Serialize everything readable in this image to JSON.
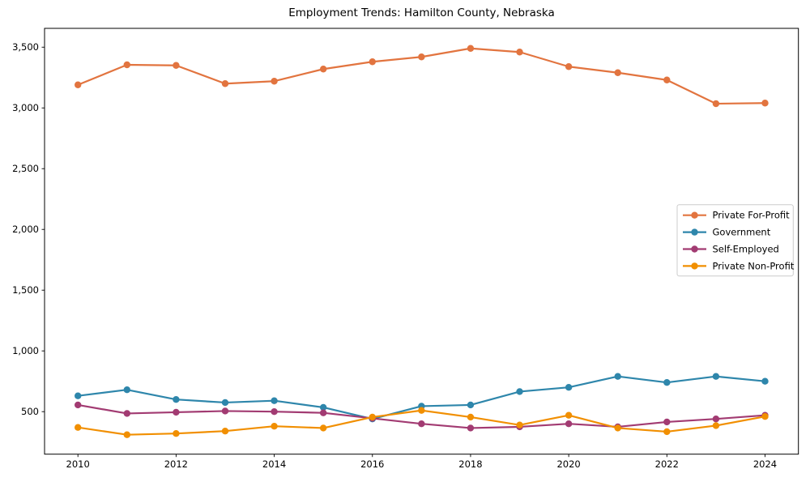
{
  "chart_data": {
    "type": "line",
    "title": "Employment Trends: Hamilton County, Nebraska",
    "xlabel": "",
    "ylabel": "",
    "x": [
      2010,
      2011,
      2012,
      2013,
      2014,
      2015,
      2016,
      2017,
      2018,
      2019,
      2020,
      2021,
      2022,
      2023,
      2024
    ],
    "series": [
      {
        "name": "Private For-Profit",
        "color": "#E2743F",
        "values": [
          3190,
          3355,
          3350,
          3200,
          3220,
          3320,
          3380,
          3420,
          3490,
          3460,
          3340,
          3290,
          3230,
          3035,
          3040
        ]
      },
      {
        "name": "Government",
        "color": "#2E86AB",
        "values": [
          630,
          680,
          600,
          575,
          590,
          535,
          440,
          545,
          555,
          665,
          700,
          790,
          740,
          790,
          750
        ]
      },
      {
        "name": "Self-Employed",
        "color": "#A23B72",
        "values": [
          555,
          485,
          495,
          505,
          500,
          490,
          445,
          400,
          365,
          375,
          400,
          375,
          415,
          440,
          470
        ]
      },
      {
        "name": "Private Non-Profit",
        "color": "#F18F01",
        "values": [
          370,
          310,
          320,
          340,
          380,
          365,
          455,
          510,
          455,
          390,
          470,
          365,
          335,
          385,
          460
        ]
      }
    ],
    "xlim": [
      2009.32,
      2024.68
    ],
    "ylim": [
      150,
      3655
    ],
    "xticks": [
      2010,
      2012,
      2014,
      2016,
      2018,
      2020,
      2022,
      2024
    ],
    "xtick_labels": [
      "2010",
      "2012",
      "2014",
      "2016",
      "2018",
      "2020",
      "2022",
      "2024"
    ],
    "yticks": [
      500,
      1000,
      1500,
      2000,
      2500,
      3000,
      3500
    ],
    "ytick_labels": [
      "500",
      "1,000",
      "1,500",
      "2,000",
      "2,500",
      "3,000",
      "3,500"
    ],
    "grid": false,
    "marker": "o",
    "legend_position": "center-right",
    "axis_color": "#000000",
    "legend_border_color": "#cccccc",
    "background_color": "#ffffff"
  }
}
